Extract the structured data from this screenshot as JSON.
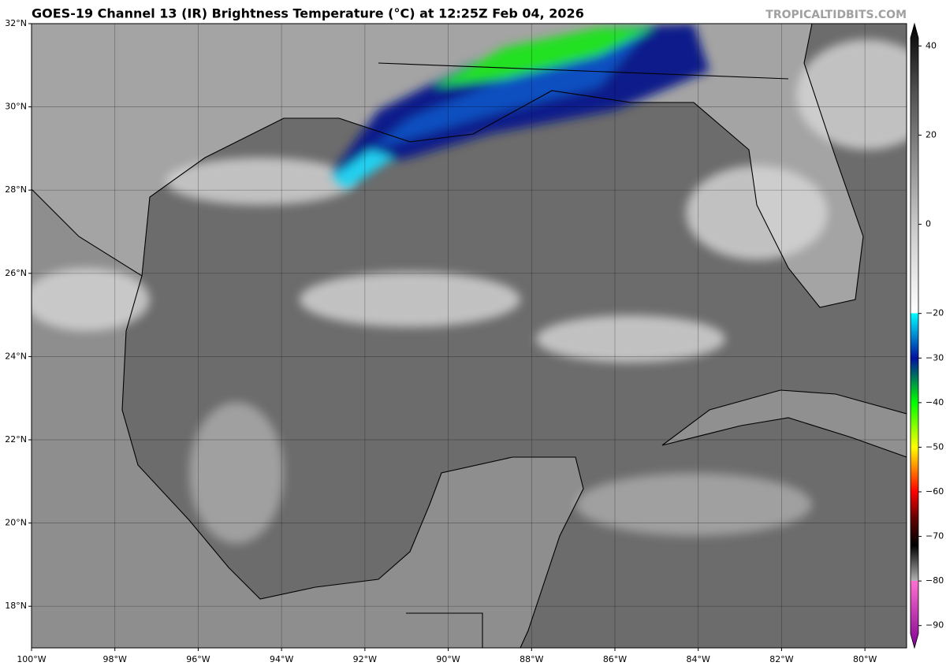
{
  "header": {
    "title": "GOES-19 Channel 13 (IR) Brightness Temperature (°C) at 12:25Z Feb 04, 2026",
    "source": "TROPICALTIDBITS.COM"
  },
  "map": {
    "xlim": [
      -100,
      -79
    ],
    "ylim": [
      17,
      32
    ],
    "lat_ticks": [
      {
        "value": 18,
        "label": "18°N"
      },
      {
        "value": 20,
        "label": "20°N"
      },
      {
        "value": 22,
        "label": "22°N"
      },
      {
        "value": 24,
        "label": "24°N"
      },
      {
        "value": 26,
        "label": "26°N"
      },
      {
        "value": 28,
        "label": "28°N"
      },
      {
        "value": 30,
        "label": "30°N"
      },
      {
        "value": 32,
        "label": "32°N"
      }
    ],
    "lon_ticks": [
      {
        "value": -100,
        "label": "100°W"
      },
      {
        "value": -98,
        "label": "98°W"
      },
      {
        "value": -96,
        "label": "96°W"
      },
      {
        "value": -94,
        "label": "94°W"
      },
      {
        "value": -92,
        "label": "92°W"
      },
      {
        "value": -90,
        "label": "90°W"
      },
      {
        "value": -88,
        "label": "88°W"
      },
      {
        "value": -86,
        "label": "86°W"
      },
      {
        "value": -84,
        "label": "84°W"
      },
      {
        "value": -82,
        "label": "82°W"
      },
      {
        "value": -80,
        "label": "80°W"
      }
    ]
  },
  "colorbar": {
    "lim": [
      -95,
      45
    ],
    "ticks": [
      40,
      20,
      0,
      {
        "value": -20,
        "label": "−20"
      },
      {
        "value": -30,
        "label": "−30"
      },
      {
        "value": -40,
        "label": "−40"
      },
      {
        "value": -50,
        "label": "−50"
      },
      {
        "value": -60,
        "label": "−60"
      },
      {
        "value": -70,
        "label": "−70"
      },
      {
        "value": -80,
        "label": "−80"
      },
      {
        "value": -90,
        "label": "−90"
      }
    ],
    "stops": [
      {
        "value": 45,
        "color": "#000000"
      },
      {
        "value": 30,
        "color": "#505050"
      },
      {
        "value": 0,
        "color": "#c8c8c8"
      },
      {
        "value": -19.9,
        "color": "#ffffff"
      },
      {
        "value": -20,
        "color": "#00ffff"
      },
      {
        "value": -30,
        "color": "#0010a0"
      },
      {
        "value": -40,
        "color": "#00ff00"
      },
      {
        "value": -50,
        "color": "#ffff00"
      },
      {
        "value": -60,
        "color": "#ff0000"
      },
      {
        "value": -66,
        "color": "#600000"
      },
      {
        "value": -72,
        "color": "#000000"
      },
      {
        "value": -79.9,
        "color": "#b0b0b0"
      },
      {
        "value": -80,
        "color": "#ff70d0"
      },
      {
        "value": -95,
        "color": "#800090"
      }
    ]
  }
}
